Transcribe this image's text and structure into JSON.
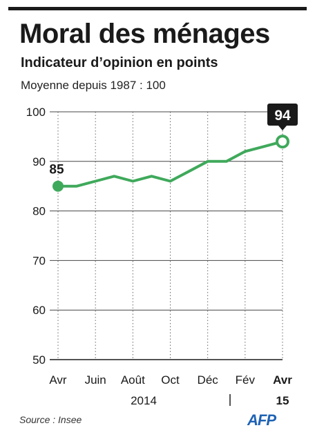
{
  "header": {
    "title": "Moral des ménages",
    "subtitle": "Indicateur d’opinion en points",
    "note": "Moyenne depuis 1987 : 100"
  },
  "footer": {
    "source": "Source : Insee",
    "logo": "AFP"
  },
  "colors": {
    "line": "#3fa95b",
    "text": "#1a1a1a",
    "grid": "#444444",
    "callout": "#1a1a1a"
  },
  "chart_data": {
    "type": "line",
    "x": [
      "2014-04",
      "2014-05",
      "2014-06",
      "2014-07",
      "2014-08",
      "2014-09",
      "2014-10",
      "2014-11",
      "2014-12",
      "2015-01",
      "2015-02",
      "2015-03",
      "2015-04"
    ],
    "series": [
      {
        "values": [
          85,
          85,
          86,
          87,
          86,
          87,
          86,
          88,
          90,
          90,
          92,
          93,
          94
        ]
      }
    ],
    "tick_labels": [
      "Avr",
      "Juin",
      "Août",
      "Oct",
      "Déc",
      "Fév",
      "Avr"
    ],
    "year_labels": [
      "2014",
      "15"
    ],
    "ylim": [
      50,
      100
    ],
    "yticks": [
      50,
      60,
      70,
      80,
      90,
      100
    ],
    "grid": true,
    "annotations": {
      "first": "85",
      "last": "94"
    }
  }
}
